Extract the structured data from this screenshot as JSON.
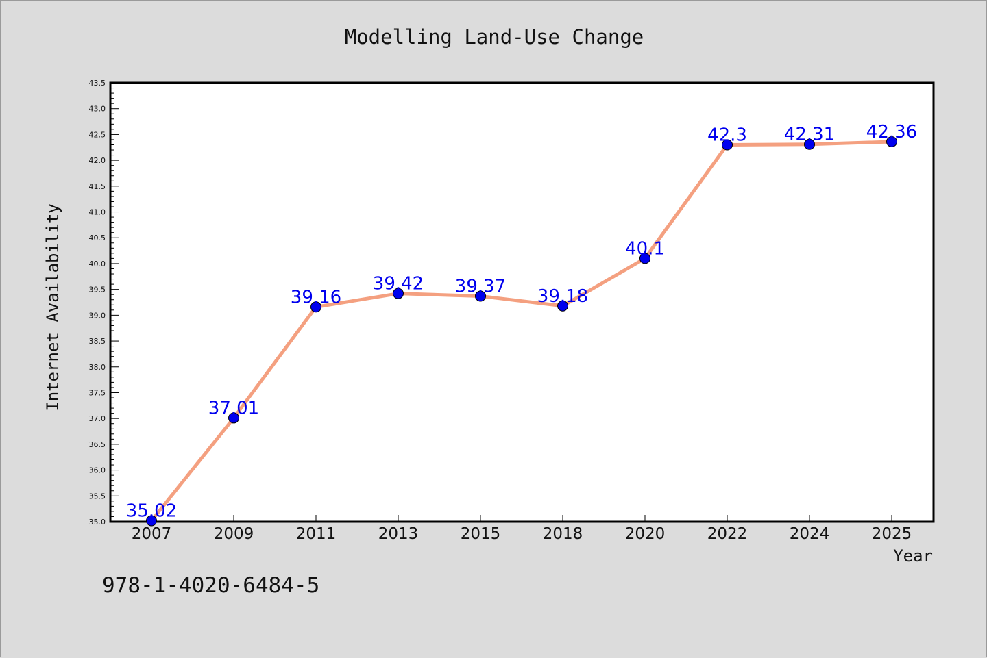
{
  "chart_data": {
    "type": "line",
    "title": "Modelling Land-Use Change",
    "xlabel": "Year",
    "ylabel": "Internet Availability",
    "categories": [
      "2007",
      "2009",
      "2011",
      "2013",
      "2015",
      "2018",
      "2020",
      "2022",
      "2024",
      "2025"
    ],
    "series": [
      {
        "values": [
          35.02,
          37.01,
          39.16,
          39.42,
          39.37,
          39.18,
          40.1,
          42.3,
          42.31,
          42.36
        ],
        "labels": [
          "35.02",
          "37.01",
          "39.16",
          "39.42",
          "39.37",
          "39.18",
          "40.1",
          "42.3",
          "42.31",
          "42.36"
        ],
        "line_color": "#f4a080",
        "marker_color": "#0000ee",
        "label_color": "#0000ee"
      }
    ],
    "ylim": [
      35.0,
      43.5
    ],
    "yticks": [
      "35.0",
      "35.5",
      "36.0",
      "36.5",
      "37.0",
      "37.5",
      "38.0",
      "38.5",
      "39.0",
      "39.5",
      "40.0",
      "40.5",
      "41.0",
      "41.5",
      "42.0",
      "42.5",
      "43.0",
      "43.5"
    ],
    "grid": false,
    "legend": "none"
  },
  "footnote": "978-1-4020-6484-5",
  "colors": {
    "background": "#dcdcdc",
    "plot_background": "#ffffff",
    "axis": "#000000"
  }
}
